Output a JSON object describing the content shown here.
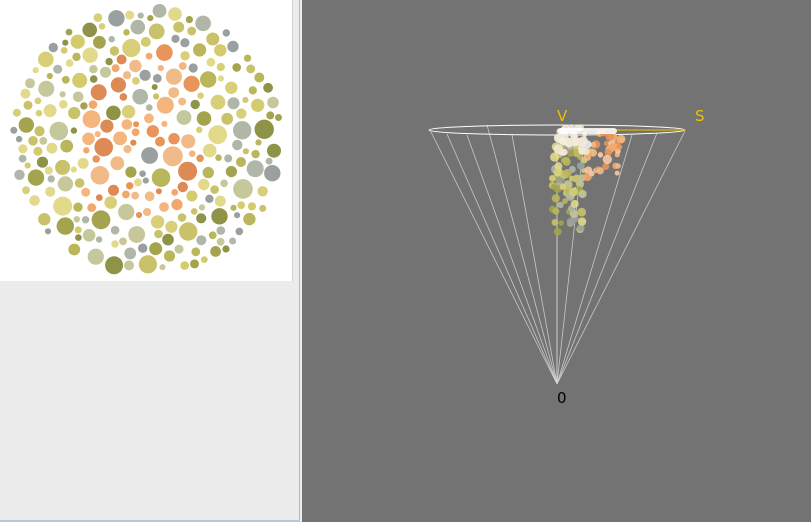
{
  "left_panel": {
    "image": {
      "name": "ishihara-color-plate",
      "colors": {
        "background_palette": [
          "#c9c26a",
          "#d8cf78",
          "#b9b65c",
          "#a4a44e",
          "#8f9348",
          "#e2d98a",
          "#c6c79a",
          "#9aa0a0",
          "#b0b6a8",
          "#d3cb6c"
        ],
        "figure_palette": [
          "#f2a86a",
          "#e8945a",
          "#f5b57c",
          "#dd8a55",
          "#f0bb88"
        ]
      }
    }
  },
  "viewport": {
    "labels": {
      "v_axis": "V",
      "s_axis": "S",
      "origin": "0"
    },
    "colors": {
      "background": "#737373",
      "wireframe": "#ffffff",
      "axis_label": "#f0c000",
      "origin_label": "#000000"
    }
  }
}
